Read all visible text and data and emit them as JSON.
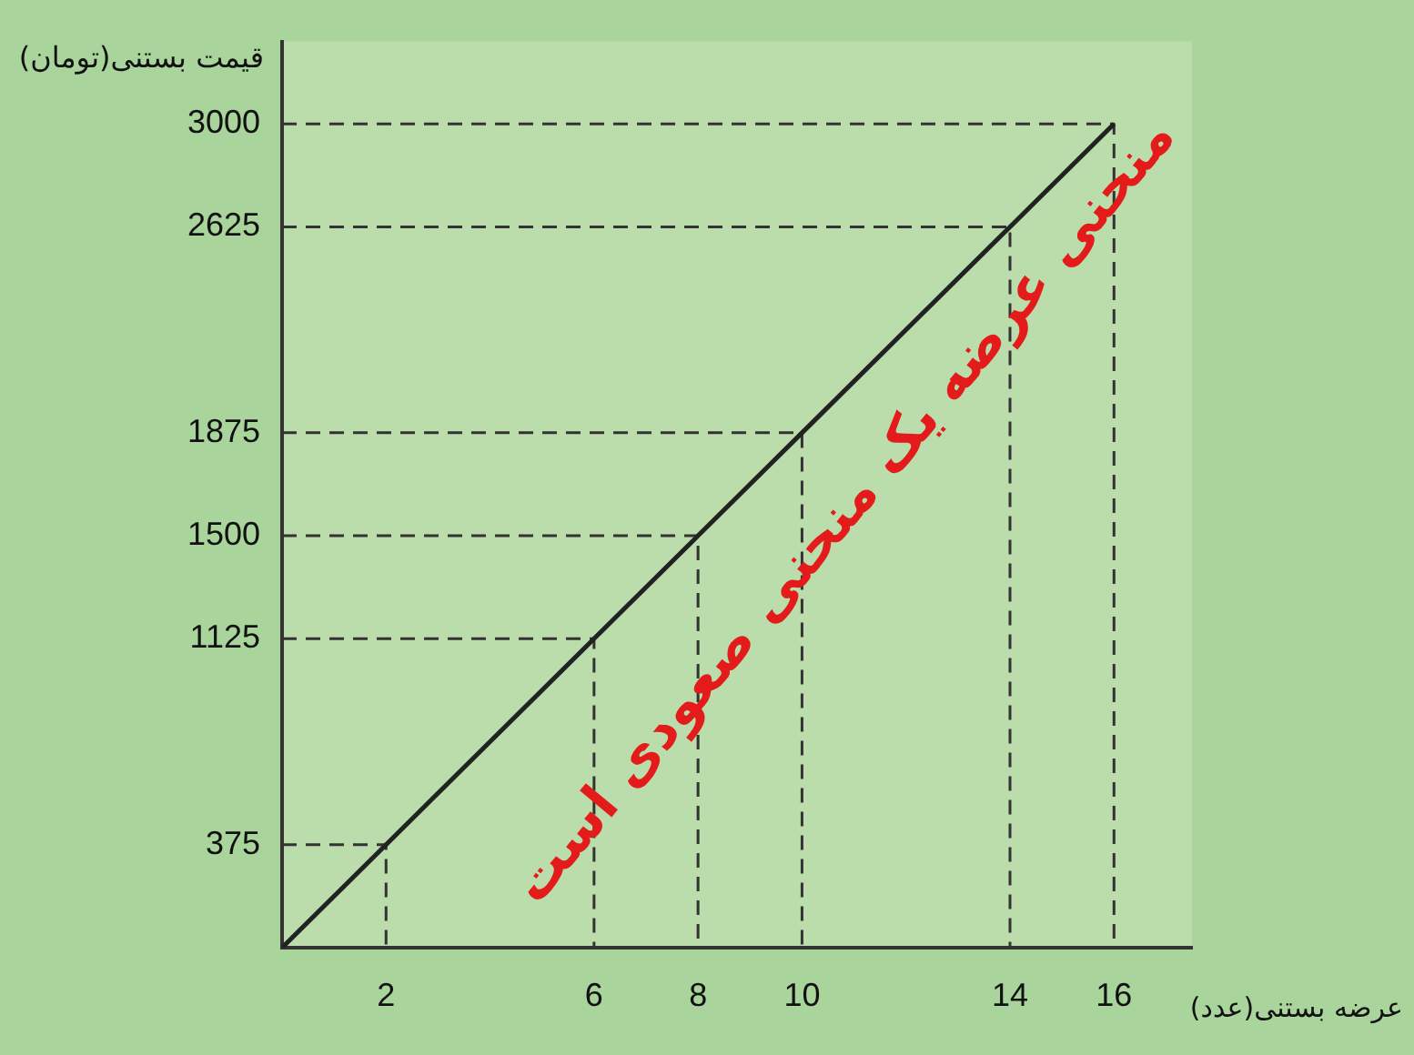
{
  "chart_data": {
    "type": "line",
    "xlabel": "عرضه بستنی(عدد)",
    "ylabel": "قیمت بستنی(تومان)",
    "x": [
      0,
      2,
      6,
      8,
      10,
      14,
      16
    ],
    "series": [
      {
        "color": "#222222",
        "values": [
          0,
          375,
          1125,
          1500,
          1875,
          2625,
          3000
        ]
      },
      {
        "color": "#333333",
        "line_style": "dashed",
        "x": [
          0,
          2,
          2
        ],
        "values": [
          375,
          375,
          0
        ]
      },
      {
        "color": "#333333",
        "line_style": "dashed",
        "x": [
          0,
          6,
          6
        ],
        "values": [
          1125,
          1125,
          0
        ]
      },
      {
        "color": "#333333",
        "line_style": "dashed",
        "x": [
          0,
          8,
          8
        ],
        "values": [
          1500,
          1500,
          0
        ]
      },
      {
        "color": "#333333",
        "line_style": "dashed",
        "x": [
          0,
          10,
          10
        ],
        "values": [
          1875,
          1875,
          0
        ]
      },
      {
        "color": "#333333",
        "line_style": "dashed",
        "x": [
          0,
          14,
          14
        ],
        "values": [
          2625,
          2625,
          0
        ]
      },
      {
        "color": "#333333",
        "line_style": "dashed",
        "x": [
          0,
          16,
          16
        ],
        "values": [
          3000,
          3000,
          0
        ]
      }
    ],
    "xlim": [
      0,
      17.5
    ],
    "ylim": [
      0,
      3300
    ],
    "xticks": [
      2,
      6,
      8,
      10,
      14,
      16
    ],
    "yticks": [
      375,
      1125,
      1500,
      1875,
      2625,
      3000
    ],
    "grid": false,
    "legend": false,
    "marker": "none",
    "line_style": "solid",
    "annotations": [
      "منحنی عرضه یک منحنی صعودی است"
    ]
  }
}
